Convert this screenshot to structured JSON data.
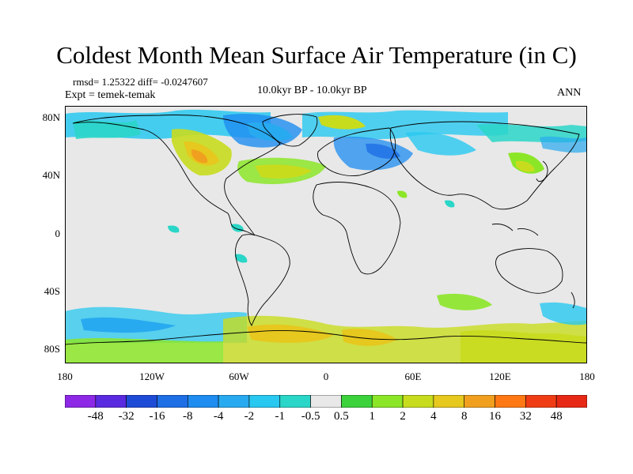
{
  "title": "Coldest Month Mean Surface Air Temperature (in C)",
  "stats_line": "rmsd= 1.25322 diff= -0.0247607",
  "experiment_line": "Expt = temek-temak",
  "period_label": "10.0kyr BP - 10.0kyr BP",
  "season_label": "ANN",
  "map": {
    "lat_labels": [
      "80N",
      "40N",
      "0",
      "40S",
      "80S"
    ],
    "lon_labels": [
      "180",
      "120W",
      "60W",
      "0",
      "60E",
      "120E",
      "180"
    ],
    "background_color": "#e8e8e8",
    "coastline_color": "#000000"
  },
  "colorbar": {
    "labels": [
      "-48",
      "-32",
      "-16",
      "-8",
      "-4",
      "-2",
      "-1",
      "-0.5",
      "0.5",
      "1",
      "2",
      "4",
      "8",
      "16",
      "32",
      "48"
    ],
    "colors": [
      "#8c28e6",
      "#5a2ae0",
      "#1e4bd6",
      "#1e6ee6",
      "#1e8cf0",
      "#28aaf0",
      "#28c8f0",
      "#2ad6c8",
      "#e8e8e8",
      "#3cd23c",
      "#8ce628",
      "#c8dc1e",
      "#e6c81e",
      "#f0a01e",
      "#ff7814",
      "#f03c14",
      "#e62814"
    ]
  }
}
